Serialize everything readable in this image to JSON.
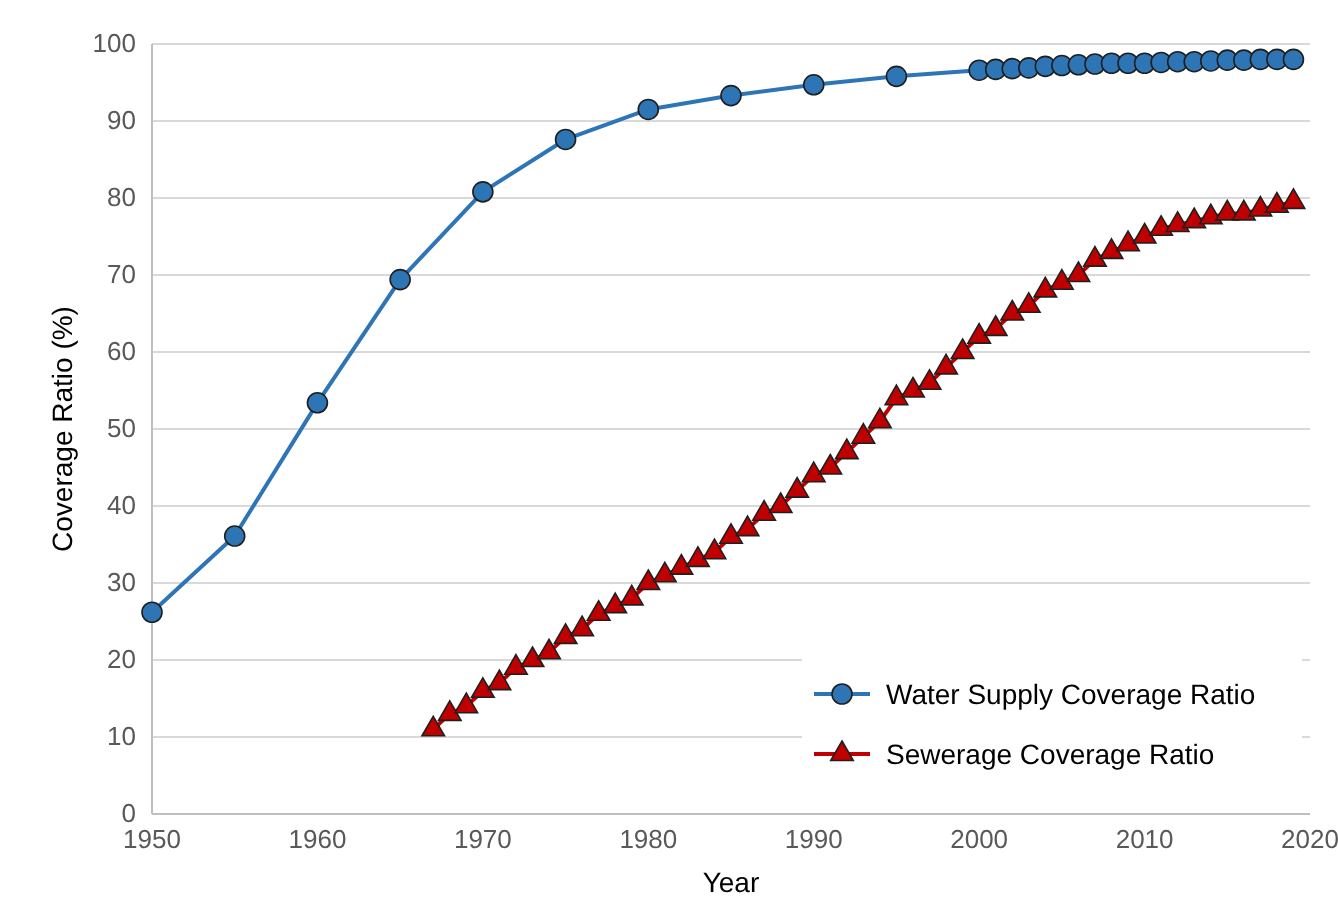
{
  "chart_data": {
    "type": "line",
    "xlabel": "Year",
    "ylabel": "Coverage Ratio (%)",
    "xlim": [
      1950,
      2020
    ],
    "xticks": [
      1950,
      1960,
      1970,
      1980,
      1990,
      2000,
      2010,
      2020
    ],
    "ylim": [
      0,
      100
    ],
    "yticks": [
      0,
      10,
      20,
      30,
      40,
      50,
      60,
      70,
      80,
      90,
      100
    ],
    "grid": "y",
    "legend": "bottom right",
    "series": [
      {
        "name": "Water Supply Coverage Ratio",
        "color": "#2e75b6",
        "marker": "circle",
        "x": [
          1950,
          1955,
          1960,
          1965,
          1970,
          1975,
          1980,
          1985,
          1990,
          1995,
          2000,
          2001,
          2002,
          2003,
          2004,
          2005,
          2006,
          2007,
          2008,
          2009,
          2010,
          2011,
          2012,
          2013,
          2014,
          2015,
          2016,
          2017,
          2018,
          2019
        ],
        "values": [
          26.2,
          36.1,
          53.4,
          69.4,
          80.8,
          87.6,
          91.5,
          93.3,
          94.7,
          95.8,
          96.6,
          96.7,
          96.8,
          96.9,
          97.1,
          97.2,
          97.3,
          97.4,
          97.5,
          97.5,
          97.5,
          97.6,
          97.7,
          97.7,
          97.8,
          97.9,
          97.9,
          98.0,
          98.0,
          98.0
        ]
      },
      {
        "name": "Sewerage Coverage Ratio",
        "color": "#c00000",
        "marker": "triangle",
        "x": [
          1967,
          1968,
          1969,
          1970,
          1971,
          1972,
          1973,
          1974,
          1975,
          1976,
          1977,
          1978,
          1979,
          1980,
          1981,
          1982,
          1983,
          1984,
          1985,
          1986,
          1987,
          1988,
          1989,
          1990,
          1991,
          1992,
          1993,
          1994,
          1995,
          1996,
          1997,
          1998,
          1999,
          2000,
          2001,
          2002,
          2003,
          2004,
          2005,
          2006,
          2007,
          2008,
          2009,
          2010,
          2011,
          2012,
          2013,
          2014,
          2015,
          2016,
          2017,
          2018,
          2019
        ],
        "values": [
          11,
          13,
          14,
          16,
          17,
          19,
          20,
          21,
          23,
          24,
          26,
          27,
          28,
          30,
          31,
          32,
          33,
          34,
          36,
          37,
          39,
          40,
          42,
          44,
          45,
          47,
          49,
          51,
          54,
          55,
          56,
          58,
          60,
          62,
          63,
          65,
          66,
          68,
          69,
          70,
          72,
          73,
          74,
          75,
          76,
          76.5,
          77,
          77.5,
          78,
          78,
          78.5,
          79,
          79.5
        ]
      }
    ]
  }
}
